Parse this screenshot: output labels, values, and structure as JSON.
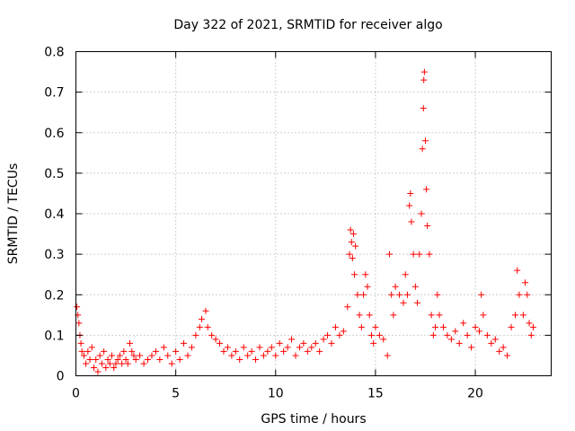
{
  "chart_data": {
    "type": "scatter",
    "title": "Day 322 of 2021, SRMTID for receiver algo",
    "xlabel": "GPS time / hours",
    "ylabel": "SRMTID / TECUs",
    "xlim": [
      0,
      23.8
    ],
    "ylim": [
      0,
      0.8
    ],
    "xticks": [
      0,
      5,
      10,
      15,
      20
    ],
    "yticks": [
      0,
      0.1,
      0.2,
      0.3,
      0.4,
      0.5,
      0.6,
      0.7,
      0.8
    ],
    "xtick_labels": [
      "0",
      "5",
      "10",
      "15",
      "20"
    ],
    "ytick_labels": [
      "0",
      "0.1",
      "0.2",
      "0.3",
      "0.4",
      "0.5",
      "0.6",
      "0.7",
      "0.8"
    ],
    "grid": true,
    "marker": "+",
    "marker_color": "#ff0000",
    "series": [
      {
        "name": "SRMTID",
        "points": [
          [
            0.05,
            0.17
          ],
          [
            0.1,
            0.15
          ],
          [
            0.15,
            0.13
          ],
          [
            0.2,
            0.1
          ],
          [
            0.25,
            0.08
          ],
          [
            0.3,
            0.06
          ],
          [
            0.4,
            0.05
          ],
          [
            0.5,
            0.03
          ],
          [
            0.6,
            0.06
          ],
          [
            0.7,
            0.04
          ],
          [
            0.8,
            0.07
          ],
          [
            0.9,
            0.02
          ],
          [
            1.0,
            0.04
          ],
          [
            1.1,
            0.01
          ],
          [
            1.2,
            0.05
          ],
          [
            1.3,
            0.03
          ],
          [
            1.4,
            0.06
          ],
          [
            1.5,
            0.02
          ],
          [
            1.6,
            0.04
          ],
          [
            1.7,
            0.03
          ],
          [
            1.8,
            0.05
          ],
          [
            1.9,
            0.02
          ],
          [
            2.0,
            0.03
          ],
          [
            2.1,
            0.04
          ],
          [
            2.2,
            0.05
          ],
          [
            2.3,
            0.03
          ],
          [
            2.4,
            0.06
          ],
          [
            2.5,
            0.04
          ],
          [
            2.6,
            0.03
          ],
          [
            2.7,
            0.08
          ],
          [
            2.8,
            0.06
          ],
          [
            2.9,
            0.05
          ],
          [
            3.0,
            0.04
          ],
          [
            3.2,
            0.05
          ],
          [
            3.4,
            0.03
          ],
          [
            3.6,
            0.04
          ],
          [
            3.8,
            0.05
          ],
          [
            4.0,
            0.06
          ],
          [
            4.2,
            0.04
          ],
          [
            4.4,
            0.07
          ],
          [
            4.6,
            0.05
          ],
          [
            4.8,
            0.03
          ],
          [
            5.0,
            0.06
          ],
          [
            5.2,
            0.04
          ],
          [
            5.4,
            0.08
          ],
          [
            5.6,
            0.05
          ],
          [
            5.8,
            0.07
          ],
          [
            6.0,
            0.1
          ],
          [
            6.2,
            0.12
          ],
          [
            6.3,
            0.14
          ],
          [
            6.5,
            0.16
          ],
          [
            6.6,
            0.12
          ],
          [
            6.8,
            0.1
          ],
          [
            7.0,
            0.09
          ],
          [
            7.2,
            0.08
          ],
          [
            7.4,
            0.06
          ],
          [
            7.6,
            0.07
          ],
          [
            7.8,
            0.05
          ],
          [
            8.0,
            0.06
          ],
          [
            8.2,
            0.04
          ],
          [
            8.4,
            0.07
          ],
          [
            8.6,
            0.05
          ],
          [
            8.8,
            0.06
          ],
          [
            9.0,
            0.04
          ],
          [
            9.2,
            0.07
          ],
          [
            9.4,
            0.05
          ],
          [
            9.6,
            0.06
          ],
          [
            9.8,
            0.07
          ],
          [
            10.0,
            0.05
          ],
          [
            10.2,
            0.08
          ],
          [
            10.4,
            0.06
          ],
          [
            10.6,
            0.07
          ],
          [
            10.8,
            0.09
          ],
          [
            11.0,
            0.05
          ],
          [
            11.2,
            0.07
          ],
          [
            11.4,
            0.08
          ],
          [
            11.6,
            0.06
          ],
          [
            11.8,
            0.07
          ],
          [
            12.0,
            0.08
          ],
          [
            12.2,
            0.06
          ],
          [
            12.4,
            0.09
          ],
          [
            12.6,
            0.1
          ],
          [
            12.8,
            0.08
          ],
          [
            13.0,
            0.12
          ],
          [
            13.2,
            0.1
          ],
          [
            13.4,
            0.11
          ],
          [
            13.6,
            0.17
          ],
          [
            13.7,
            0.3
          ],
          [
            13.75,
            0.36
          ],
          [
            13.8,
            0.33
          ],
          [
            13.85,
            0.29
          ],
          [
            13.9,
            0.35
          ],
          [
            13.95,
            0.25
          ],
          [
            14.0,
            0.32
          ],
          [
            14.1,
            0.2
          ],
          [
            14.2,
            0.15
          ],
          [
            14.3,
            0.12
          ],
          [
            14.4,
            0.2
          ],
          [
            14.5,
            0.25
          ],
          [
            14.6,
            0.22
          ],
          [
            14.7,
            0.15
          ],
          [
            14.8,
            0.1
          ],
          [
            14.9,
            0.08
          ],
          [
            15.0,
            0.12
          ],
          [
            15.2,
            0.1
          ],
          [
            15.4,
            0.09
          ],
          [
            15.6,
            0.05
          ],
          [
            15.7,
            0.3
          ],
          [
            15.8,
            0.2
          ],
          [
            15.9,
            0.15
          ],
          [
            16.0,
            0.22
          ],
          [
            16.2,
            0.2
          ],
          [
            16.4,
            0.18
          ],
          [
            16.5,
            0.25
          ],
          [
            16.6,
            0.2
          ],
          [
            16.7,
            0.42
          ],
          [
            16.75,
            0.45
          ],
          [
            16.8,
            0.38
          ],
          [
            16.9,
            0.3
          ],
          [
            17.0,
            0.22
          ],
          [
            17.1,
            0.18
          ],
          [
            17.2,
            0.3
          ],
          [
            17.3,
            0.4
          ],
          [
            17.35,
            0.56
          ],
          [
            17.4,
            0.66
          ],
          [
            17.42,
            0.73
          ],
          [
            17.45,
            0.75
          ],
          [
            17.5,
            0.58
          ],
          [
            17.55,
            0.46
          ],
          [
            17.6,
            0.37
          ],
          [
            17.7,
            0.3
          ],
          [
            17.8,
            0.15
          ],
          [
            17.9,
            0.1
          ],
          [
            18.0,
            0.12
          ],
          [
            18.1,
            0.2
          ],
          [
            18.2,
            0.15
          ],
          [
            18.4,
            0.12
          ],
          [
            18.6,
            0.1
          ],
          [
            18.8,
            0.09
          ],
          [
            19.0,
            0.11
          ],
          [
            19.2,
            0.08
          ],
          [
            19.4,
            0.13
          ],
          [
            19.6,
            0.1
          ],
          [
            19.8,
            0.07
          ],
          [
            20.0,
            0.12
          ],
          [
            20.2,
            0.11
          ],
          [
            20.3,
            0.2
          ],
          [
            20.4,
            0.15
          ],
          [
            20.6,
            0.1
          ],
          [
            20.8,
            0.08
          ],
          [
            21.0,
            0.09
          ],
          [
            21.2,
            0.06
          ],
          [
            21.4,
            0.07
          ],
          [
            21.6,
            0.05
          ],
          [
            21.8,
            0.12
          ],
          [
            22.0,
            0.15
          ],
          [
            22.1,
            0.26
          ],
          [
            22.2,
            0.2
          ],
          [
            22.4,
            0.15
          ],
          [
            22.5,
            0.23
          ],
          [
            22.6,
            0.2
          ],
          [
            22.7,
            0.13
          ],
          [
            22.8,
            0.1
          ],
          [
            22.9,
            0.12
          ]
        ]
      }
    ]
  }
}
